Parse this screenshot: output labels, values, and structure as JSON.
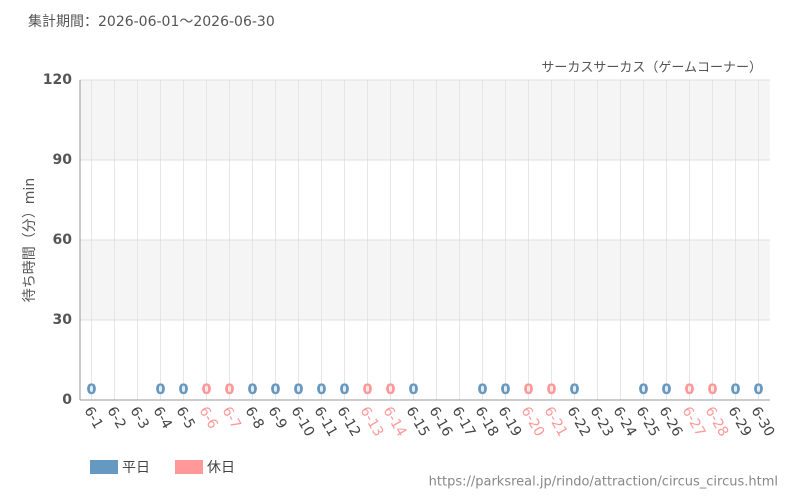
{
  "chart_data": {
    "type": "bar",
    "title": "集計期間：2026-06-01～2026-06-30",
    "subtitle": "サーカスサーカス（ゲームコーナー）",
    "y_label": "待ち時間（分）min",
    "footer": "https://parksreal.jp/rindo/attraction/circus_circus.html",
    "categories": [
      "6-1",
      "6-2",
      "6-3",
      "6-4",
      "6-5",
      "6-6",
      "6-7",
      "6-8",
      "6-9",
      "6-10",
      "6-11",
      "6-12",
      "6-13",
      "6-14",
      "6-15",
      "6-16",
      "6-17",
      "6-18",
      "6-19",
      "6-20",
      "6-21",
      "6-22",
      "6-23",
      "6-24",
      "6-25",
      "6-26",
      "6-27",
      "6-28",
      "6-29",
      "6-30"
    ],
    "series": [
      {
        "name": "平日",
        "color": "#6699c2",
        "values": [
          0,
          null,
          null,
          0,
          0,
          null,
          null,
          0,
          0,
          0,
          0,
          0,
          null,
          null,
          0,
          null,
          null,
          0,
          0,
          null,
          null,
          0,
          null,
          null,
          0,
          0,
          null,
          null,
          0,
          0
        ]
      },
      {
        "name": "休日",
        "color": "#ff9999",
        "values": [
          null,
          null,
          null,
          null,
          null,
          0,
          0,
          null,
          null,
          null,
          null,
          null,
          0,
          0,
          null,
          null,
          null,
          null,
          null,
          0,
          0,
          null,
          null,
          null,
          null,
          null,
          0,
          0,
          null,
          null
        ]
      }
    ],
    "ylim": [
      0,
      120
    ],
    "yticks": [
      0,
      30,
      60,
      90,
      120
    ],
    "grid": true
  }
}
